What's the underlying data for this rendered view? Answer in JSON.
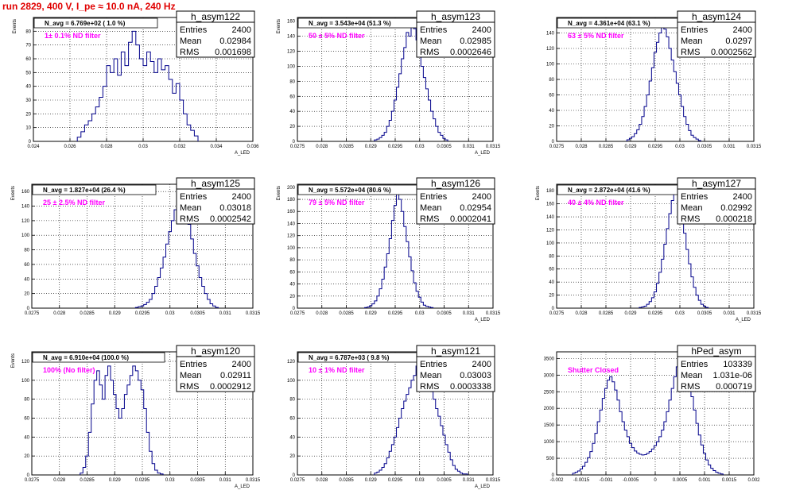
{
  "header": {
    "title": "run 2829,   400 V, I_pe ≈ 10.0 nA, 240 Hz"
  },
  "chart_data": [
    {
      "type": "histogram",
      "name": "h_asym122",
      "stats": {
        "entries": "2400",
        "mean": "0.02984",
        "rms": "0.001698"
      },
      "annotation": "N_avg = 6.769e+02 ( 1.0 %)",
      "filter_label": "1± 0.1% ND filter",
      "xlabel": "A_LED",
      "ylabel": "Events",
      "xlim": [
        0.024,
        0.036
      ],
      "ylim": [
        0,
        90
      ],
      "xticks": [
        "0.024",
        "0.026",
        "0.028",
        "0.03",
        "0.032",
        "0.034",
        "0.036"
      ],
      "yticks": [
        "0",
        "10",
        "20",
        "30",
        "40",
        "50",
        "60",
        "70",
        "80"
      ],
      "bins_x": [
        0.0265,
        0.0267,
        0.0269,
        0.0271,
        0.0273,
        0.0275,
        0.0277,
        0.0279,
        0.0281,
        0.0283,
        0.0285,
        0.0287,
        0.0289,
        0.0291,
        0.0293,
        0.0295,
        0.0297,
        0.0299,
        0.0301,
        0.0303,
        0.0305,
        0.0307,
        0.0309,
        0.0311,
        0.0313,
        0.0315,
        0.0317,
        0.0319,
        0.0321,
        0.0323,
        0.0325,
        0.0327,
        0.0329
      ],
      "values": [
        3,
        7,
        12,
        15,
        20,
        25,
        32,
        40,
        55,
        50,
        60,
        48,
        65,
        55,
        72,
        80,
        70,
        60,
        55,
        65,
        58,
        50,
        60,
        52,
        55,
        45,
        35,
        42,
        30,
        20,
        12,
        8,
        4
      ]
    },
    {
      "type": "histogram",
      "name": "h_asym123",
      "stats": {
        "entries": "2400",
        "mean": "0.02985",
        "rms": "0.0002646"
      },
      "annotation": "N_avg = 3.543e+04 (51.3 %)",
      "filter_label": "50 ± 5% ND filter",
      "xlabel": "A_LED",
      "ylabel": "Events",
      "xlim": [
        0.0275,
        0.0315
      ],
      "ylim": [
        0,
        165
      ],
      "xticks": [
        "0.0275",
        "0.028",
        "0.0285",
        "0.029",
        "0.0295",
        "0.03",
        "0.0305",
        "0.031",
        "0.0315"
      ],
      "yticks": [
        "0",
        "20",
        "40",
        "60",
        "80",
        "100",
        "120",
        "140",
        "160"
      ],
      "bins_x": [
        0.0291,
        0.02915,
        0.0292,
        0.02925,
        0.0293,
        0.02935,
        0.0294,
        0.02945,
        0.0295,
        0.02955,
        0.0296,
        0.02965,
        0.0297,
        0.02975,
        0.0298,
        0.02985,
        0.0299,
        0.02995,
        0.03,
        0.03005,
        0.0301,
        0.03015,
        0.0302,
        0.03025,
        0.0303,
        0.03035,
        0.0304,
        0.03045,
        0.0305,
        0.03055
      ],
      "values": [
        2,
        3,
        5,
        8,
        12,
        20,
        28,
        40,
        55,
        72,
        90,
        110,
        125,
        145,
        140,
        160,
        150,
        135,
        118,
        100,
        85,
        70,
        55,
        40,
        30,
        20,
        12,
        8,
        4,
        2
      ]
    },
    {
      "type": "histogram",
      "name": "h_asym124",
      "stats": {
        "entries": "2400",
        "mean": "0.0297",
        "rms": "0.0002562"
      },
      "annotation": "N_avg = 4.361e+04 (63.1 %)",
      "filter_label": "63 ± 5% ND filter",
      "xlabel": "",
      "ylabel": "",
      "xlim": [
        0.0275,
        0.0315
      ],
      "ylim": [
        0,
        160
      ],
      "xticks": [
        "0.0275",
        "0.028",
        "0.0285",
        "0.029",
        "0.0295",
        "0.03",
        "0.0305",
        "0.031",
        "0.0315"
      ],
      "yticks": [
        "0",
        "20",
        "40",
        "60",
        "80",
        "100",
        "120",
        "140"
      ],
      "bins_x": [
        0.02895,
        0.029,
        0.02905,
        0.0291,
        0.02915,
        0.0292,
        0.02925,
        0.0293,
        0.02935,
        0.0294,
        0.02945,
        0.0295,
        0.02955,
        0.0296,
        0.02965,
        0.0297,
        0.02975,
        0.0298,
        0.02985,
        0.0299,
        0.02995,
        0.03,
        0.03005,
        0.0301,
        0.03015,
        0.0302,
        0.03025,
        0.0303,
        0.03035,
        0.0304
      ],
      "values": [
        2,
        4,
        6,
        10,
        15,
        22,
        32,
        45,
        60,
        78,
        95,
        115,
        128,
        140,
        150,
        145,
        135,
        120,
        105,
        90,
        75,
        60,
        45,
        32,
        22,
        14,
        8,
        5,
        3,
        1
      ]
    },
    {
      "type": "histogram",
      "name": "h_asym125",
      "stats": {
        "entries": "2400",
        "mean": "0.03018",
        "rms": "0.0002542"
      },
      "annotation": "N_avg = 1.827e+04 (26.4 %)",
      "filter_label": "25 ± 2.5% ND filter",
      "xlabel": "",
      "ylabel": "Events",
      "xlim": [
        0.0275,
        0.0315
      ],
      "ylim": [
        0,
        170
      ],
      "xticks": [
        "0.0275",
        "0.028",
        "0.0285",
        "0.029",
        "0.0295",
        "0.03",
        "0.0305",
        "0.031",
        "0.0315"
      ],
      "yticks": [
        "0",
        "20",
        "40",
        "60",
        "80",
        "100",
        "120",
        "140",
        "160"
      ],
      "bins_x": [
        0.0294,
        0.02945,
        0.0295,
        0.02955,
        0.0296,
        0.02965,
        0.0297,
        0.02975,
        0.0298,
        0.02985,
        0.0299,
        0.02995,
        0.03,
        0.03005,
        0.0301,
        0.03015,
        0.0302,
        0.03025,
        0.0303,
        0.03035,
        0.0304,
        0.03045,
        0.0305,
        0.03055,
        0.0306,
        0.03065,
        0.0307,
        0.03075,
        0.0308,
        0.03085
      ],
      "values": [
        1,
        2,
        3,
        5,
        8,
        12,
        20,
        30,
        42,
        55,
        70,
        88,
        105,
        120,
        135,
        150,
        160,
        148,
        130,
        115,
        95,
        75,
        58,
        42,
        30,
        20,
        12,
        6,
        3,
        1
      ]
    },
    {
      "type": "histogram",
      "name": "h_asym126",
      "stats": {
        "entries": "2400",
        "mean": "0.02954",
        "rms": "0.0002041"
      },
      "annotation": "N_avg = 5.572e+04 (80.6 %)",
      "filter_label": "79 ± 5% ND filter",
      "xlabel": "A_LED",
      "ylabel": "Events",
      "xlim": [
        0.0275,
        0.0315
      ],
      "ylim": [
        0,
        205
      ],
      "xticks": [
        "0.0275",
        "0.028",
        "0.0285",
        "0.029",
        "0.0295",
        "0.03",
        "0.0305",
        "0.031",
        "0.0315"
      ],
      "yticks": [
        "0",
        "20",
        "40",
        "60",
        "80",
        "100",
        "120",
        "140",
        "160",
        "180",
        "200"
      ],
      "bins_x": [
        0.0289,
        0.02895,
        0.029,
        0.02905,
        0.0291,
        0.02915,
        0.0292,
        0.02925,
        0.0293,
        0.02935,
        0.0294,
        0.02945,
        0.0295,
        0.02955,
        0.0296,
        0.02965,
        0.0297,
        0.02975,
        0.0298,
        0.02985,
        0.0299,
        0.02995,
        0.03,
        0.03005,
        0.0301,
        0.03015,
        0.0302,
        0.03025
      ],
      "values": [
        1,
        2,
        4,
        7,
        12,
        20,
        32,
        48,
        68,
        90,
        115,
        145,
        170,
        190,
        180,
        160,
        135,
        110,
        85,
        62,
        42,
        28,
        18,
        10,
        5,
        3,
        2,
        1
      ]
    },
    {
      "type": "histogram",
      "name": "h_asym127",
      "stats": {
        "entries": "2400",
        "mean": "0.02992",
        "rms": "0.000218"
      },
      "annotation": "N_avg = 2.872e+04 (41.6 %)",
      "filter_label": "40 ± 4% ND filter",
      "xlabel": "A_LED",
      "ylabel": "Events",
      "xlim": [
        0.0275,
        0.0315
      ],
      "ylim": [
        0,
        190
      ],
      "xticks": [
        "0.0275",
        "0.028",
        "0.0285",
        "0.029",
        "0.0295",
        "0.03",
        "0.0305",
        "0.031",
        "0.0315"
      ],
      "yticks": [
        "0",
        "20",
        "40",
        "60",
        "80",
        "100",
        "120",
        "140",
        "160",
        "180"
      ],
      "bins_x": [
        0.0292,
        0.02925,
        0.0293,
        0.02935,
        0.0294,
        0.02945,
        0.0295,
        0.02955,
        0.0296,
        0.02965,
        0.0297,
        0.02975,
        0.0298,
        0.02985,
        0.0299,
        0.02995,
        0.03,
        0.03005,
        0.0301,
        0.03015,
        0.0302,
        0.03025,
        0.0303,
        0.03035,
        0.0304,
        0.03045,
        0.0305,
        0.03055
      ],
      "values": [
        1,
        2,
        3,
        6,
        10,
        16,
        25,
        38,
        55,
        75,
        98,
        122,
        145,
        165,
        180,
        175,
        160,
        140,
        115,
        90,
        68,
        48,
        32,
        20,
        12,
        6,
        3,
        1
      ]
    },
    {
      "type": "histogram",
      "name": "h_asym120",
      "stats": {
        "entries": "2400",
        "mean": "0.02911",
        "rms": "0.0002912"
      },
      "annotation": "N_avg = 6.910e+04 (100.0 %)",
      "filter_label": "100% (No filter)",
      "xlabel": "A_LED",
      "ylabel": "Events",
      "xlim": [
        0.0275,
        0.0315
      ],
      "ylim": [
        0,
        130
      ],
      "xticks": [
        "0.0275",
        "0.028",
        "0.0285",
        "0.029",
        "0.0295",
        "0.03",
        "0.0305",
        "0.031",
        "0.0315"
      ],
      "yticks": [
        "0",
        "20",
        "40",
        "60",
        "80",
        "100",
        "120"
      ],
      "bins_x": [
        0.0284,
        0.02845,
        0.0285,
        0.02855,
        0.0286,
        0.02865,
        0.0287,
        0.02875,
        0.0288,
        0.02885,
        0.0289,
        0.02895,
        0.029,
        0.02905,
        0.0291,
        0.02915,
        0.0292,
        0.02925,
        0.0293,
        0.02935,
        0.0294,
        0.02945,
        0.0295,
        0.02955,
        0.0296,
        0.02965,
        0.0297,
        0.02975,
        0.0298,
        0.02985
      ],
      "values": [
        2,
        8,
        20,
        45,
        75,
        100,
        110,
        95,
        80,
        105,
        115,
        100,
        85,
        70,
        60,
        70,
        85,
        95,
        105,
        115,
        110,
        100,
        90,
        70,
        45,
        25,
        12,
        5,
        2,
        1
      ]
    },
    {
      "type": "histogram",
      "name": "h_asym121",
      "stats": {
        "entries": "2400",
        "mean": "0.03003",
        "rms": "0.0003338"
      },
      "annotation": "N_avg = 6.787e+03 ( 9.8 %)",
      "filter_label": "10 ± 1% ND filter",
      "xlabel": "A_LED",
      "ylabel": "",
      "xlim": [
        0.0275,
        0.0315
      ],
      "ylim": [
        0,
        130
      ],
      "xticks": [
        "0.0275",
        "0.028",
        "0.0285",
        "0.029",
        "0.0295",
        "0.03",
        "0.0305",
        "0.031",
        "0.0315"
      ],
      "yticks": [
        "0",
        "20",
        "40",
        "60",
        "80",
        "100",
        "120"
      ],
      "bins_x": [
        0.0291,
        0.02915,
        0.0292,
        0.02925,
        0.0293,
        0.02935,
        0.0294,
        0.02945,
        0.0295,
        0.02955,
        0.0296,
        0.02965,
        0.0297,
        0.02975,
        0.0298,
        0.02985,
        0.0299,
        0.02995,
        0.03,
        0.03005,
        0.0301,
        0.03015,
        0.0302,
        0.03025,
        0.0303,
        0.03035,
        0.0304,
        0.03045,
        0.0305,
        0.03055,
        0.0306,
        0.03065,
        0.0307,
        0.03075,
        0.0308,
        0.03085,
        0.0309,
        0.03095
      ],
      "values": [
        2,
        3,
        5,
        8,
        12,
        18,
        25,
        32,
        40,
        50,
        60,
        70,
        78,
        85,
        92,
        100,
        105,
        115,
        120,
        118,
        110,
        102,
        95,
        88,
        80,
        70,
        62,
        52,
        42,
        32,
        24,
        16,
        10,
        6,
        4,
        2,
        1,
        1
      ]
    },
    {
      "type": "histogram",
      "name": "hPed_asym",
      "stats": {
        "entries": "103339",
        "mean": "1.031e-06",
        "rms": "0.000719"
      },
      "annotation": "",
      "filter_label": "Shutter Closed",
      "xlabel": "",
      "ylabel": "",
      "xlim": [
        -0.002,
        0.002
      ],
      "ylim": [
        0,
        3700
      ],
      "xticks": [
        "-0.002",
        "-0.0015",
        "-0.001",
        "-0.0005",
        "0",
        "0.0005",
        "0.001",
        "0.0015",
        "0.002"
      ],
      "yticks": [
        "0",
        "500",
        "1000",
        "1500",
        "2000",
        "2500",
        "3000",
        "3500"
      ],
      "bins_x": [
        -0.00165,
        -0.0016,
        -0.00155,
        -0.0015,
        -0.00145,
        -0.0014,
        -0.00135,
        -0.0013,
        -0.00125,
        -0.0012,
        -0.00115,
        -0.0011,
        -0.00105,
        -0.001,
        -0.00095,
        -0.0009,
        -0.00085,
        -0.0008,
        -0.00075,
        -0.0007,
        -0.00065,
        -0.0006,
        -0.00055,
        -0.0005,
        -0.00045,
        -0.0004,
        -0.00035,
        -0.0003,
        -0.00025,
        -0.0002,
        -0.00015,
        -0.0001,
        -5e-05,
        0.0,
        5e-05,
        0.0001,
        0.00015,
        0.0002,
        0.00025,
        0.0003,
        0.00035,
        0.0004,
        0.00045,
        0.0005,
        0.00055,
        0.0006,
        0.00065,
        0.0007,
        0.00075,
        0.0008,
        0.00085,
        0.0009,
        0.00095,
        0.001,
        0.00105,
        0.0011,
        0.00115,
        0.0012,
        0.00125,
        0.0013,
        0.00135
      ],
      "values": [
        50,
        80,
        120,
        180,
        260,
        380,
        520,
        700,
        950,
        1250,
        1600,
        1950,
        2300,
        2600,
        2850,
        2950,
        2800,
        2550,
        2250,
        1900,
        1600,
        1350,
        1150,
        950,
        820,
        720,
        660,
        620,
        600,
        610,
        650,
        700,
        780,
        880,
        1000,
        1150,
        1350,
        1600,
        1900,
        2250,
        2600,
        2950,
        3250,
        3450,
        3500,
        3350,
        3100,
        2750,
        2350,
        1950,
        1550,
        1200,
        900,
        650,
        450,
        300,
        200,
        130,
        80,
        50,
        30
      ]
    }
  ]
}
